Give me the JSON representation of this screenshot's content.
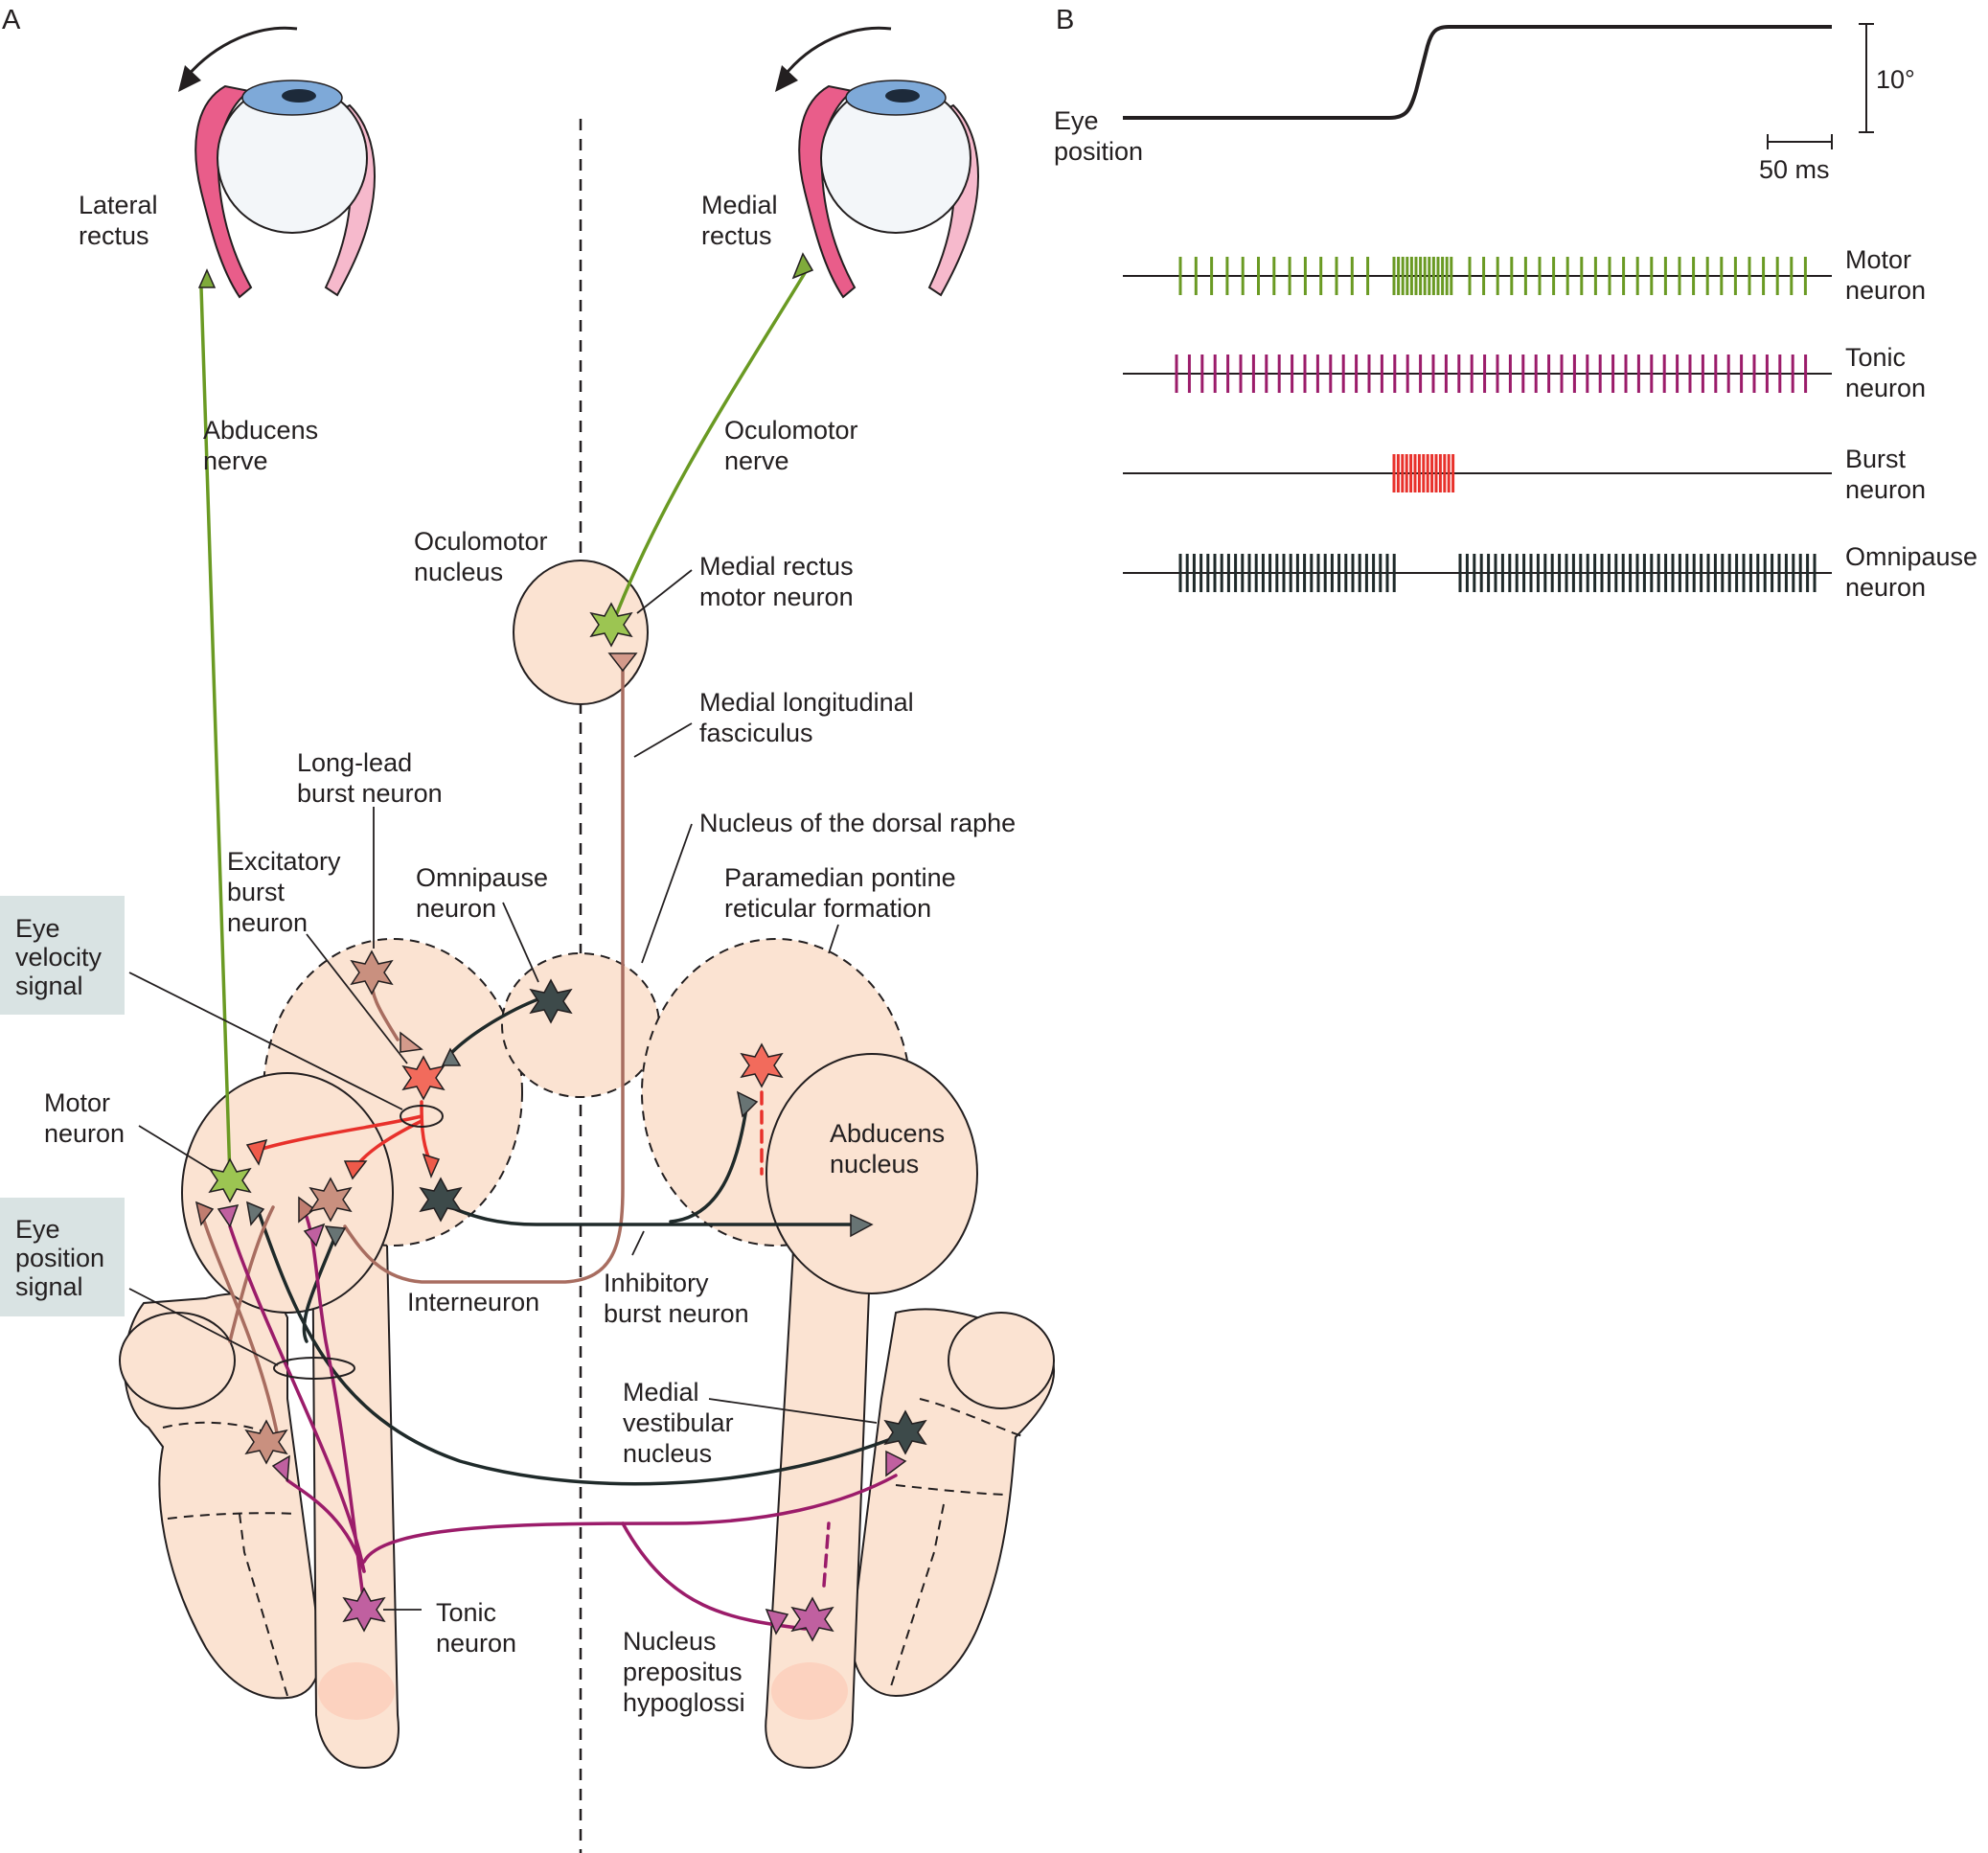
{
  "panel_a": {
    "letter": "A",
    "labels": {
      "lateral_rectus": [
        "Lateral",
        "rectus"
      ],
      "medial_rectus": [
        "Medial",
        "rectus"
      ],
      "abducens_nerve": [
        "Abducens",
        "nerve"
      ],
      "oculomotor_nerve": [
        "Oculomotor",
        "nerve"
      ],
      "oculomotor_nucleus": [
        "Oculomotor",
        "nucleus"
      ],
      "medial_rectus_motor_neuron": [
        "Medial rectus",
        "motor neuron"
      ],
      "medial_longitudinal_fasciculus": [
        "Medial longitudinal",
        "fasciculus"
      ],
      "nucleus_dorsal_raphe": [
        "Nucleus of the dorsal raphe"
      ],
      "long_lead_burst_neuron": [
        "Long-lead",
        "burst neuron"
      ],
      "excitatory_burst_neuron": [
        "Excitatory",
        "burst",
        "neuron"
      ],
      "omnipause_neuron": [
        "Omnipause",
        "neuron"
      ],
      "pprf": [
        "Paramedian pontine",
        "reticular formation"
      ],
      "eye_velocity_signal": [
        "Eye",
        "velocity",
        "signal"
      ],
      "motor_neuron": [
        "Motor",
        "neuron"
      ],
      "abducens_nucleus": [
        "Abducens",
        "nucleus"
      ],
      "eye_position_signal": [
        "Eye",
        "position",
        "signal"
      ],
      "interneuron": [
        "Interneuron"
      ],
      "inhibitory_burst_neuron": [
        "Inhibitory",
        "burst neuron"
      ],
      "medial_vestibular_nucleus": [
        "Medial",
        "vestibular",
        "nucleus"
      ],
      "tonic_neuron": [
        "Tonic",
        "neuron"
      ],
      "nucleus_prepositus_hypoglossi": [
        "Nucleus",
        "prepositus",
        "hypoglossi"
      ]
    }
  },
  "panel_b": {
    "letter": "B",
    "eye_position_label": [
      "Eye",
      "position"
    ],
    "scale_vertical": "10°",
    "scale_horizontal": "50 ms",
    "trains": [
      {
        "name": [
          "Motor",
          "neuron"
        ],
        "color": "#6a9a23"
      },
      {
        "name": [
          "Tonic",
          "neuron"
        ],
        "color": "#9b1c6a"
      },
      {
        "name": [
          "Burst",
          "neuron"
        ],
        "color": "#e8312b"
      },
      {
        "name": [
          "Omnipause",
          "neuron"
        ],
        "color": "#1f2a2a"
      }
    ]
  },
  "colors": {
    "tissue": "#fbe3d2",
    "motor": "#6a9a23",
    "tonic": "#9b1c6a",
    "burst": "#e8312b",
    "omnipause": "#1f2a2a",
    "interneuron": "#a86d60",
    "muscle": "#e95d8a",
    "muscle_light": "#f6b9cc",
    "callout_box": "#d9e3e3"
  }
}
